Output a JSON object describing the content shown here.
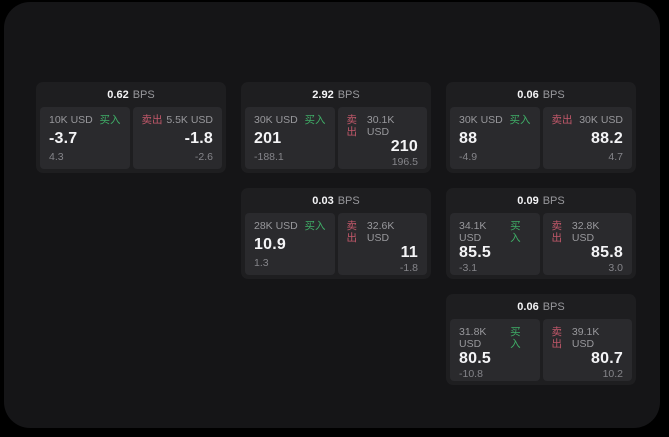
{
  "labels": {
    "bps_unit": "BPS",
    "buy": "买入",
    "sell": "卖出"
  },
  "colors": {
    "page_bg": "#000000",
    "panel_bg": "#151517",
    "card_bg": "#1e1e20",
    "pane_bg": "#2a2a2d",
    "text_primary": "#f4f4f6",
    "text_muted": "#98989c",
    "text_dim": "#85858a",
    "buy": "#3fae67",
    "sell": "#c2586a"
  },
  "cards": [
    {
      "bps": "0.62",
      "buy": {
        "amount": "10K USD",
        "price": "-3.7",
        "change": "4.3"
      },
      "sell": {
        "amount": "5.5K USD",
        "price": "-1.8",
        "change": "-2.6"
      }
    },
    {
      "bps": "2.92",
      "buy": {
        "amount": "30K USD",
        "price": "201",
        "change": "-188.1"
      },
      "sell": {
        "amount": "30.1K USD",
        "price": "210",
        "change": "196.5"
      }
    },
    {
      "bps": "0.06",
      "buy": {
        "amount": "30K USD",
        "price": "88",
        "change": "-4.9"
      },
      "sell": {
        "amount": "30K USD",
        "price": "88.2",
        "change": "4.7"
      }
    },
    {
      "bps": "0.03",
      "buy": {
        "amount": "28K USD",
        "price": "10.9",
        "change": "1.3"
      },
      "sell": {
        "amount": "32.6K USD",
        "price": "11",
        "change": "-1.8"
      }
    },
    {
      "bps": "0.09",
      "buy": {
        "amount": "34.1K USD",
        "price": "85.5",
        "change": "-3.1"
      },
      "sell": {
        "amount": "32.8K USD",
        "price": "85.8",
        "change": "3.0"
      }
    },
    {
      "bps": "0.06",
      "buy": {
        "amount": "31.8K USD",
        "price": "80.5",
        "change": "-10.8"
      },
      "sell": {
        "amount": "39.1K USD",
        "price": "80.7",
        "change": "10.2"
      }
    }
  ]
}
